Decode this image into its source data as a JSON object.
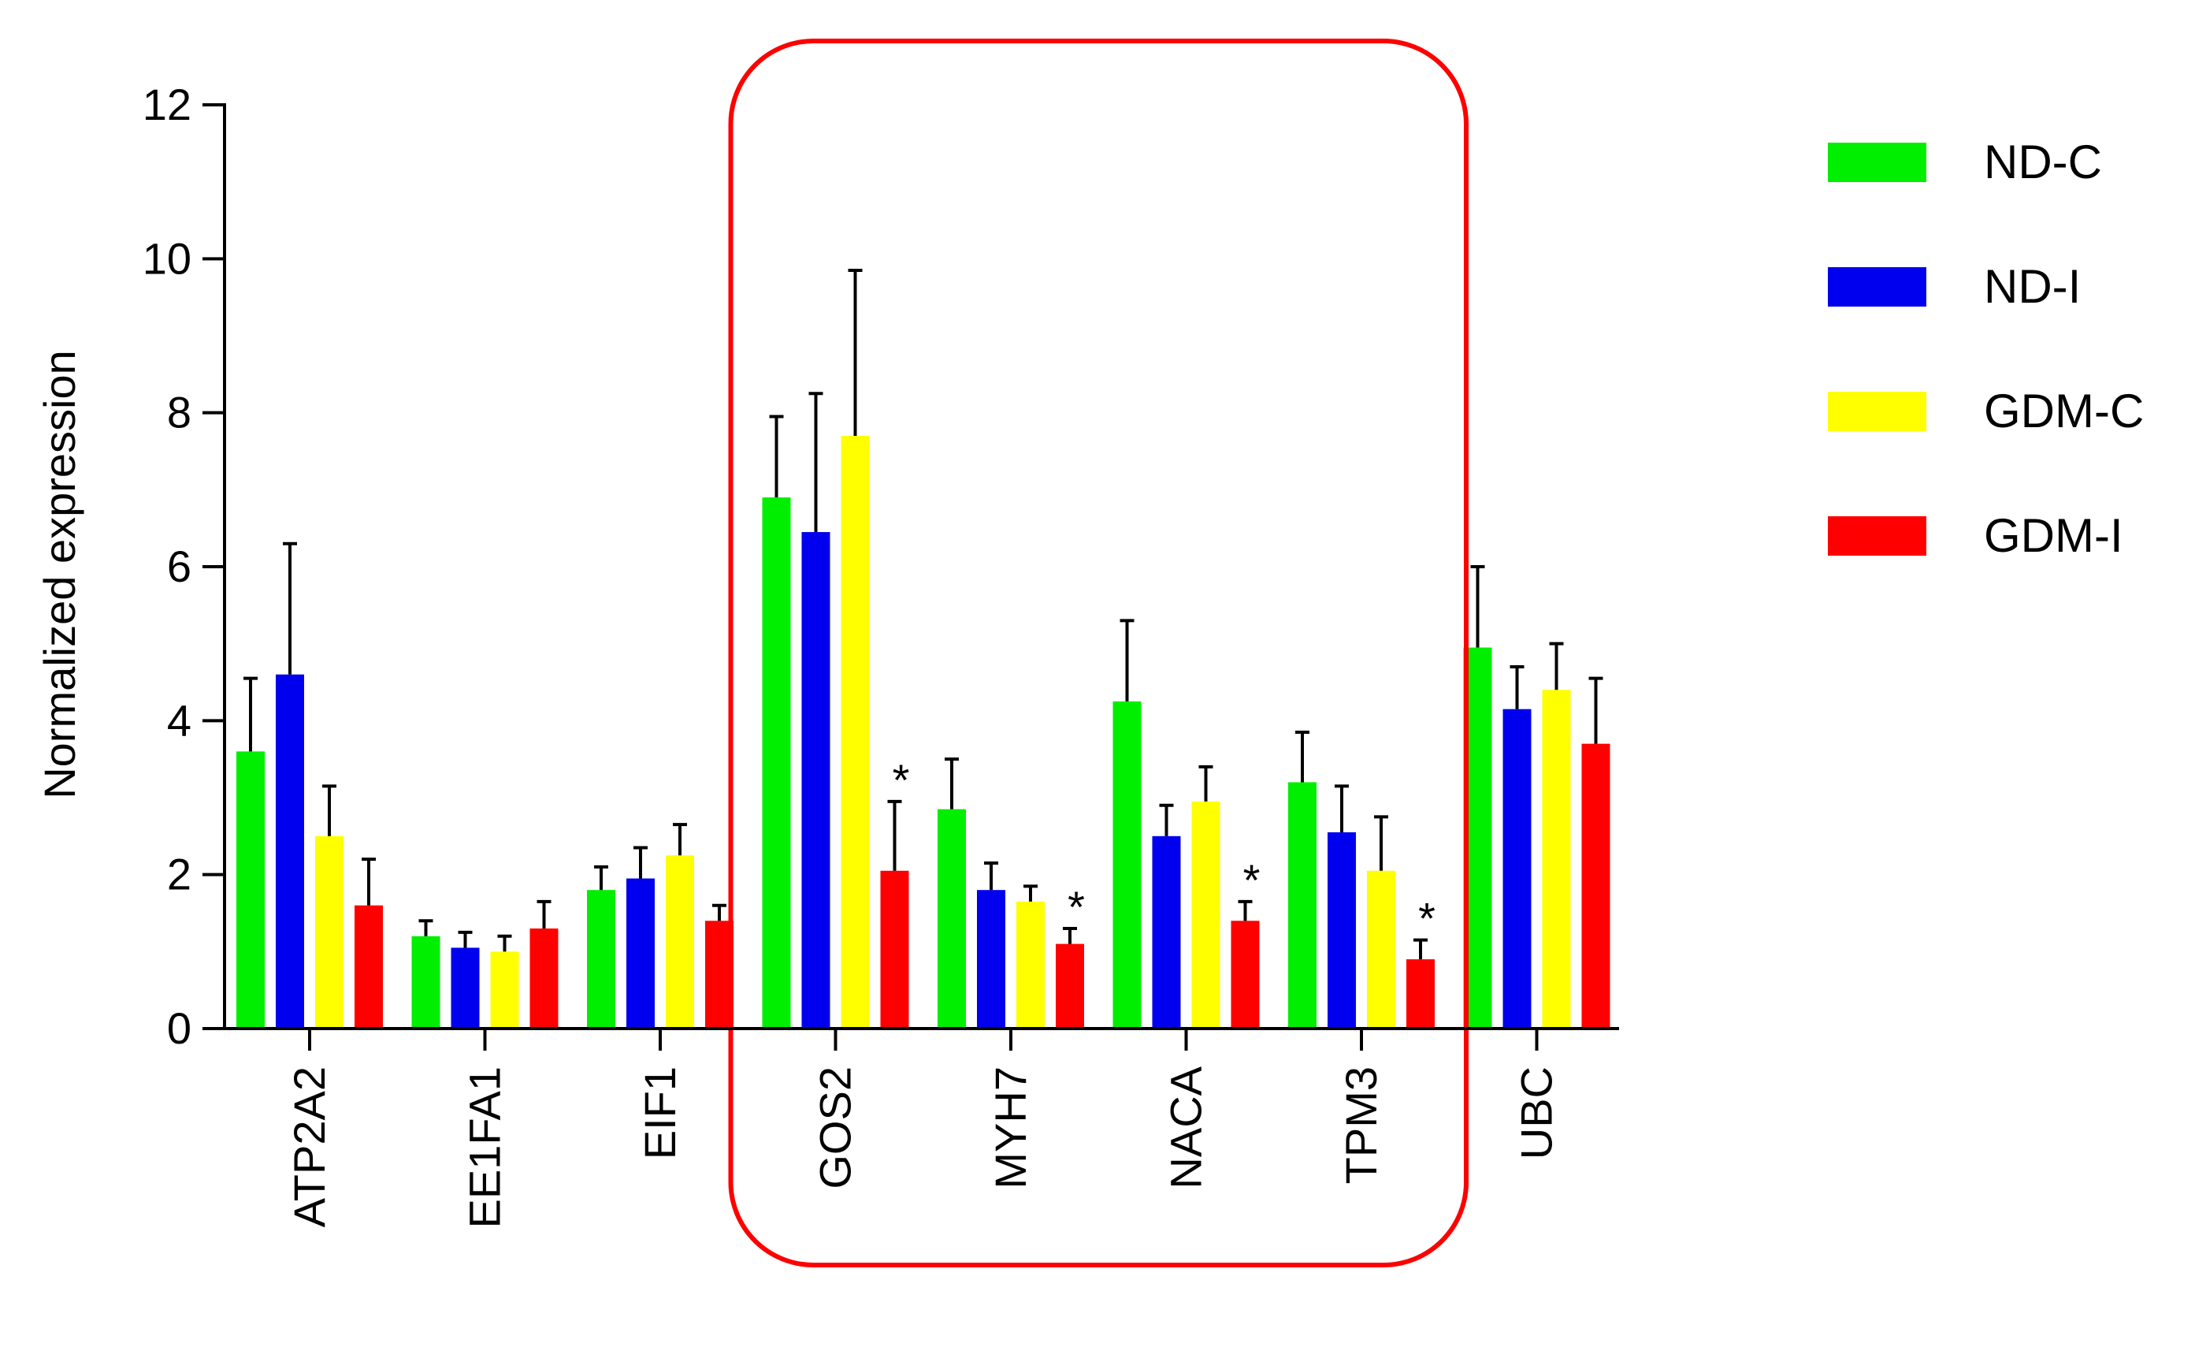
{
  "chart_data": {
    "type": "bar",
    "categories": [
      "ATP2A2",
      "EE1FA1",
      "EIF1",
      "GOS2",
      "MYH7",
      "NACA",
      "TPM3",
      "UBC"
    ],
    "ylabel": "Normalized expression",
    "xlabel": "",
    "ylim": [
      0,
      12
    ],
    "yticks": [
      0,
      2,
      4,
      6,
      8,
      10,
      12
    ],
    "legend_position": "right",
    "series": [
      {
        "name": "ND-C",
        "color": "#00ee00",
        "values": [
          3.6,
          1.2,
          1.8,
          6.9,
          2.85,
          4.25,
          3.2,
          4.95
        ],
        "error": [
          0.95,
          0.2,
          0.3,
          1.05,
          0.65,
          1.05,
          0.65,
          1.05
        ]
      },
      {
        "name": "ND-I",
        "color": "#0000ee",
        "values": [
          4.6,
          1.05,
          1.95,
          6.45,
          1.8,
          2.5,
          2.55,
          4.15
        ],
        "error": [
          1.7,
          0.2,
          0.4,
          1.8,
          0.35,
          0.4,
          0.6,
          0.55
        ]
      },
      {
        "name": "GDM-C",
        "color": "#ffff00",
        "values": [
          2.5,
          1.0,
          2.25,
          7.7,
          1.65,
          2.95,
          2.05,
          4.4
        ],
        "error": [
          0.65,
          0.2,
          0.4,
          2.15,
          0.2,
          0.45,
          0.7,
          0.6
        ]
      },
      {
        "name": "GDM-I",
        "color": "#ff0000",
        "values": [
          1.6,
          1.3,
          1.4,
          2.05,
          1.1,
          1.4,
          0.9,
          3.7
        ],
        "error": [
          0.6,
          0.35,
          0.2,
          0.9,
          0.2,
          0.25,
          0.25,
          0.85
        ]
      }
    ],
    "annotations": [
      {
        "text": "*",
        "category": "GOS2",
        "series": "GDM-I"
      },
      {
        "text": "*",
        "category": "MYH7",
        "series": "GDM-I"
      },
      {
        "text": "*",
        "category": "NACA",
        "series": "GDM-I"
      },
      {
        "text": "*",
        "category": "TPM3",
        "series": "GDM-I"
      }
    ],
    "highlight": {
      "categories": [
        "GOS2",
        "MYH7",
        "NACA",
        "TPM3"
      ],
      "color": "#ff0000"
    }
  }
}
